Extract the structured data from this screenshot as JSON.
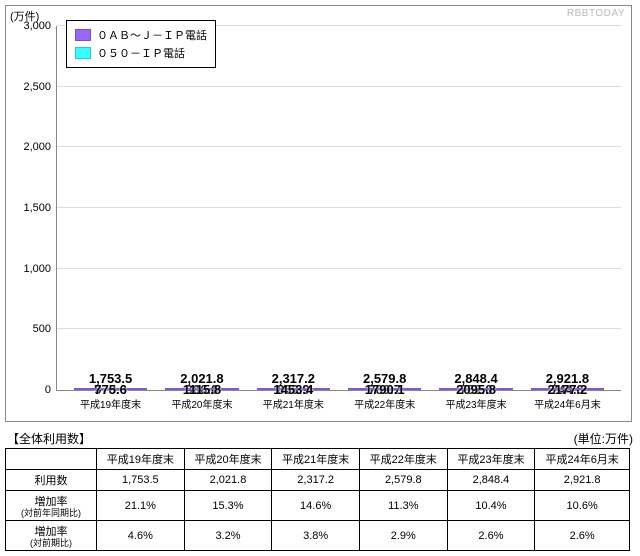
{
  "chart": {
    "type": "stacked-bar",
    "unit_label": "(万件)",
    "watermark": "RBBTODAY",
    "background_color": "#ffffff",
    "grid_color": "#dddddd",
    "axis_color": "#888888",
    "ylim": [
      0,
      3000
    ],
    "ytick_step": 500,
    "yticks": [
      "0",
      "500",
      "1,000",
      "1,500",
      "2,000",
      "2,500",
      "3,000"
    ],
    "series": [
      {
        "name": "０ＡＢ～Ｊ－ＩＰ電話",
        "color": "#9966ff"
      },
      {
        "name": "０５０－ＩＰ電話",
        "color": "#33ffff"
      }
    ],
    "categories": [
      "平成19年度末",
      "平成20年度末",
      "平成21年度末",
      "平成22年度末",
      "平成23年度末",
      "平成24年6月末"
    ],
    "stack_bottom": {
      "color": "#33ffff",
      "values": [
        978.0,
        906.0,
        863.9,
        789.7,
        752.6,
        744.6
      ],
      "labels": [
        "978.0",
        "906.0",
        "863.9",
        "789.7",
        "752.6",
        "744.6"
      ]
    },
    "stack_top": {
      "color": "#9966ff",
      "values": [
        775.6,
        1115.8,
        1453.4,
        1790.1,
        2095.8,
        2177.2
      ],
      "labels": [
        "775.6",
        "1115.8",
        "1453.4",
        "1790.1",
        "2095.8",
        "2177.2"
      ]
    },
    "totals_labels": [
      "1,753.5",
      "2,021.8",
      "2,317.2",
      "2,579.8",
      "2,848.4",
      "2,921.8"
    ],
    "bar_width_pct": 13,
    "bar_gap_pct": 3.2,
    "label_fontsize": 13,
    "axis_fontsize": 11
  },
  "table": {
    "title": "【全体利用数】",
    "unit": "(単位:万件)",
    "columns": [
      "平成19年度末",
      "平成20年度末",
      "平成21年度末",
      "平成22年度末",
      "平成23年度末",
      "平成24年6月末"
    ],
    "rows": [
      {
        "head": "利用数",
        "sub": "",
        "cells": [
          "1,753.5",
          "2,021.8",
          "2,317.2",
          "2,579.8",
          "2,848.4",
          "2,921.8"
        ]
      },
      {
        "head": "増加率",
        "sub": "(対前年同期比)",
        "cells": [
          "21.1%",
          "15.3%",
          "14.6%",
          "11.3%",
          "10.4%",
          "10.6%"
        ]
      },
      {
        "head": "増加率",
        "sub": "(対前期比)",
        "cells": [
          "4.6%",
          "3.2%",
          "3.8%",
          "2.9%",
          "2.6%",
          "2.6%"
        ]
      }
    ]
  }
}
